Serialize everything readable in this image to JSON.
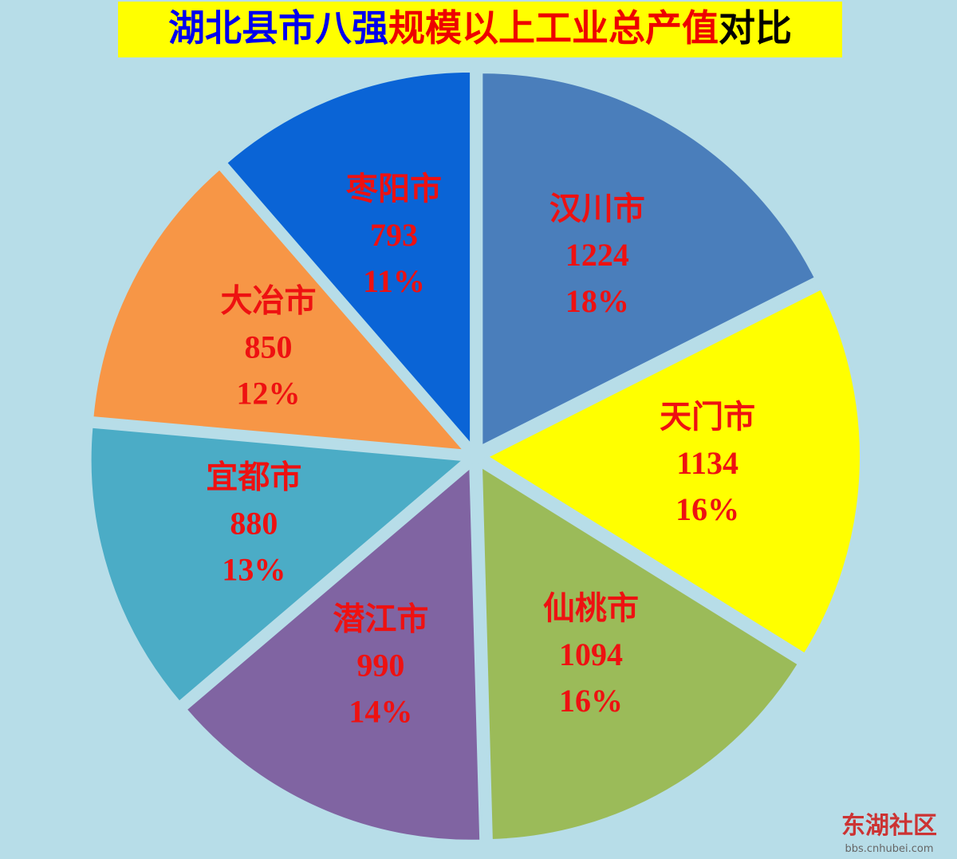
{
  "chart_data": {
    "type": "pie",
    "title_parts": [
      {
        "text": "湖北县市八强",
        "color": "#0000ee"
      },
      {
        "text": "规模以上工业总产值",
        "color": "#ee0000"
      },
      {
        "text": "对比",
        "color": "#000000"
      }
    ],
    "categories": [
      "汉川市",
      "天门市",
      "仙桃市",
      "潜江市",
      "宜都市",
      "大冶市",
      "枣阳市"
    ],
    "values": [
      1224,
      1134,
      1094,
      990,
      880,
      850,
      793
    ],
    "percents": [
      18,
      16,
      16,
      14,
      13,
      12,
      11
    ],
    "percent_labels": [
      "18%",
      "16%",
      "16%",
      "14%",
      "13%",
      "12%",
      "11%"
    ],
    "colors": [
      "#4a7ebb",
      "#ffff00",
      "#9bbb59",
      "#8064a2",
      "#4bacc6",
      "#f79646",
      "#0a64d6"
    ],
    "label_color": "#ee1111"
  },
  "watermark": {
    "name": "东湖社区",
    "url": "bbs.cnhubei.com"
  }
}
